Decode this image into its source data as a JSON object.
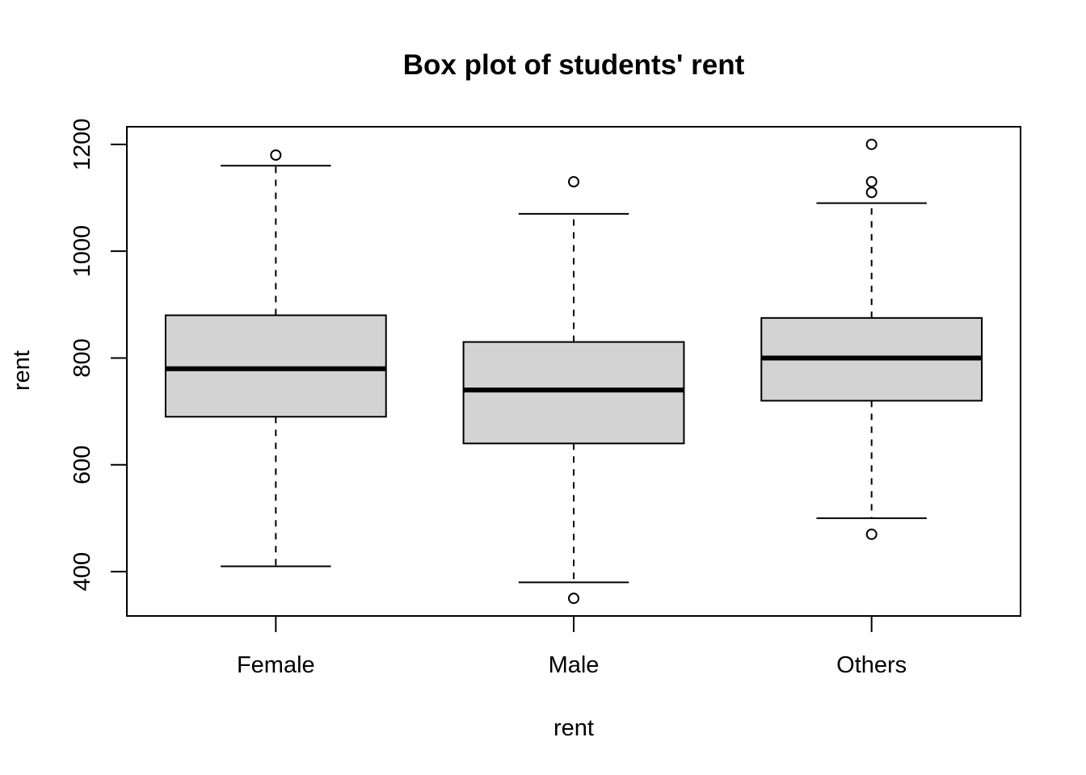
{
  "chart_data": {
    "type": "boxplot",
    "title": "Box plot of students' rent",
    "xlabel": "rent",
    "ylabel": "rent",
    "categories": [
      "Female",
      "Male",
      "Others"
    ],
    "y_ticks": [
      400,
      600,
      800,
      1000,
      1200
    ],
    "ylim": [
      317,
      1233
    ],
    "grid": false,
    "legend": "none",
    "box_fill": "#d3d3d3",
    "boxes": [
      {
        "category": "Female",
        "whisker_low": 410,
        "q1": 690,
        "median": 780,
        "q3": 880,
        "whisker_high": 1160,
        "outliers": [
          1180
        ]
      },
      {
        "category": "Male",
        "whisker_low": 380,
        "q1": 640,
        "median": 740,
        "q3": 830,
        "whisker_high": 1070,
        "outliers": [
          1130,
          350
        ]
      },
      {
        "category": "Others",
        "whisker_low": 500,
        "q1": 720,
        "median": 800,
        "q3": 875,
        "whisker_high": 1090,
        "outliers": [
          1200,
          1130,
          1110,
          470
        ]
      }
    ]
  }
}
